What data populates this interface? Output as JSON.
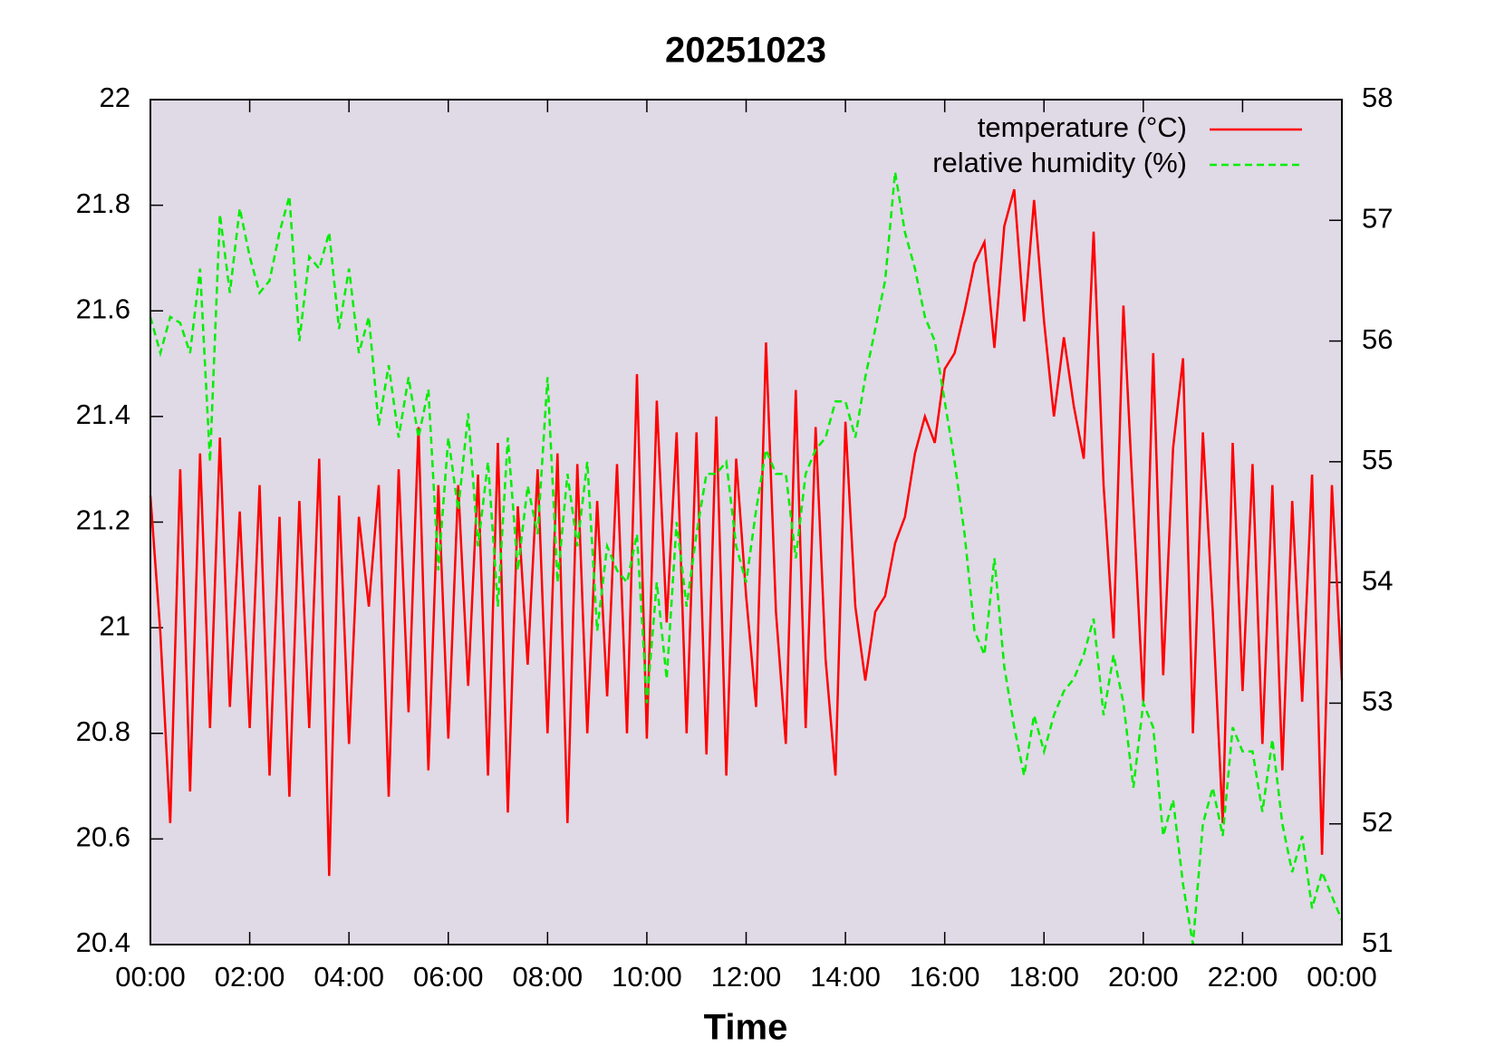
{
  "chart_data": {
    "type": "line",
    "title": "20251023",
    "xlabel": "Time",
    "x": [
      0,
      0.2,
      0.4,
      0.6,
      0.8,
      1,
      1.2,
      1.4,
      1.6,
      1.8,
      2,
      2.2,
      2.4,
      2.6,
      2.8,
      3,
      3.2,
      3.4,
      3.6,
      3.8,
      4,
      4.2,
      4.4,
      4.6,
      4.8,
      5,
      5.2,
      5.4,
      5.6,
      5.8,
      6,
      6.2,
      6.4,
      6.6,
      6.8,
      7,
      7.2,
      7.4,
      7.6,
      7.8,
      8,
      8.2,
      8.4,
      8.6,
      8.8,
      9,
      9.2,
      9.4,
      9.6,
      9.8,
      10,
      10.2,
      10.4,
      10.6,
      10.8,
      11,
      11.2,
      11.4,
      11.6,
      11.8,
      12,
      12.2,
      12.4,
      12.6,
      12.8,
      13,
      13.2,
      13.4,
      13.6,
      13.8,
      14,
      14.2,
      14.4,
      14.6,
      14.8,
      15,
      15.2,
      15.4,
      15.6,
      15.8,
      16,
      16.2,
      16.4,
      16.6,
      16.8,
      17,
      17.2,
      17.4,
      17.6,
      17.8,
      18,
      18.2,
      18.4,
      18.6,
      18.8,
      19,
      19.2,
      19.4,
      19.6,
      19.8,
      20,
      20.2,
      20.4,
      20.6,
      20.8,
      21,
      21.2,
      21.4,
      21.6,
      21.8,
      22,
      22.2,
      22.4,
      22.6,
      22.8,
      23,
      23.2,
      23.4,
      23.6,
      23.8,
      24
    ],
    "series": [
      {
        "name": "temperature (°C)",
        "color": "#ff0000",
        "dash": false,
        "axis": "y",
        "values": [
          21.25,
          20.99,
          20.63,
          21.3,
          20.69,
          21.33,
          20.81,
          21.36,
          20.85,
          21.22,
          20.81,
          21.27,
          20.72,
          21.21,
          20.68,
          21.24,
          20.81,
          21.32,
          20.53,
          21.25,
          20.78,
          21.21,
          21.04,
          21.27,
          20.68,
          21.3,
          20.84,
          21.38,
          20.73,
          21.27,
          20.79,
          21.27,
          20.89,
          21.29,
          20.72,
          21.35,
          20.65,
          21.23,
          20.93,
          21.3,
          20.8,
          21.33,
          20.63,
          21.31,
          20.8,
          21.24,
          20.87,
          21.31,
          20.8,
          21.48,
          20.79,
          21.43,
          21.01,
          21.37,
          20.8,
          21.37,
          20.76,
          21.4,
          20.72,
          21.32,
          21.06,
          20.85,
          21.54,
          21.03,
          20.78,
          21.45,
          20.81,
          21.38,
          20.94,
          20.72,
          21.39,
          21.04,
          20.9,
          21.03,
          21.06,
          21.16,
          21.21,
          21.33,
          21.4,
          21.35,
          21.49,
          21.52,
          21.6,
          21.69,
          21.73,
          21.53,
          21.76,
          21.83,
          21.58,
          21.81,
          21.58,
          21.4,
          21.55,
          21.42,
          21.32,
          21.75,
          21.27,
          20.98,
          21.61,
          21.23,
          20.86,
          21.52,
          20.91,
          21.34,
          21.51,
          20.8,
          21.37,
          21.03,
          20.63,
          21.35,
          20.88,
          21.31,
          20.78,
          21.27,
          20.73,
          21.24,
          20.86,
          21.29,
          20.57,
          21.27,
          20.9
        ]
      },
      {
        "name": "relative humidity (%)",
        "color": "#00ee00",
        "dash": true,
        "axis": "y2",
        "values": [
          56.2,
          55.9,
          56.2,
          56.15,
          55.9,
          56.6,
          55,
          57.05,
          56.4,
          57.1,
          56.7,
          56.4,
          56.5,
          56.9,
          57.2,
          56,
          56.7,
          56.6,
          56.9,
          56.1,
          56.6,
          55.9,
          56.2,
          55.3,
          55.8,
          55.2,
          55.7,
          55.2,
          55.6,
          54.1,
          55.2,
          54.6,
          55.4,
          54.3,
          55,
          53.8,
          55.2,
          54.1,
          54.8,
          54.4,
          55.7,
          54,
          54.9,
          54.3,
          55,
          53.6,
          54.3,
          54.1,
          54,
          54.4,
          53,
          54,
          53.2,
          54.5,
          53.8,
          54.4,
          54.9,
          54.9,
          55,
          54.3,
          54,
          54.6,
          55.1,
          54.9,
          54.9,
          54.2,
          54.9,
          55.1,
          55.2,
          55.5,
          55.5,
          55.2,
          55.7,
          56.1,
          56.5,
          57.4,
          56.9,
          56.6,
          56.2,
          56,
          55.5,
          55,
          54.4,
          53.6,
          53.4,
          54.2,
          53.3,
          52.8,
          52.4,
          52.9,
          52.6,
          52.9,
          53.1,
          53.2,
          53.4,
          53.7,
          52.9,
          53.4,
          53,
          52.3,
          53,
          52.8,
          51.9,
          52.2,
          51.5,
          51,
          52,
          52.3,
          51.9,
          52.8,
          52.6,
          52.6,
          52.1,
          52.7,
          52,
          51.6,
          51.9,
          51.3,
          51.6,
          51.4,
          51.2
        ]
      }
    ],
    "xlim": [
      0,
      24
    ],
    "xticks": [
      {
        "value": 0,
        "label": "00:00"
      },
      {
        "value": 2,
        "label": "02:00"
      },
      {
        "value": 4,
        "label": "04:00"
      },
      {
        "value": 6,
        "label": "06:00"
      },
      {
        "value": 8,
        "label": "08:00"
      },
      {
        "value": 10,
        "label": "10:00"
      },
      {
        "value": 12,
        "label": "12:00"
      },
      {
        "value": 14,
        "label": "14:00"
      },
      {
        "value": 16,
        "label": "16:00"
      },
      {
        "value": 18,
        "label": "18:00"
      },
      {
        "value": 20,
        "label": "20:00"
      },
      {
        "value": 22,
        "label": "22:00"
      },
      {
        "value": 24,
        "label": "00:00"
      }
    ],
    "ylim": [
      20.4,
      22
    ],
    "yticks": [
      20.4,
      20.6,
      20.8,
      21,
      21.2,
      21.4,
      21.6,
      21.8,
      22
    ],
    "y2lim": [
      51,
      58
    ],
    "y2ticks": [
      51,
      52,
      53,
      54,
      55,
      56,
      57,
      58
    ],
    "legend": "upper right",
    "background": "#e0d9e6"
  }
}
